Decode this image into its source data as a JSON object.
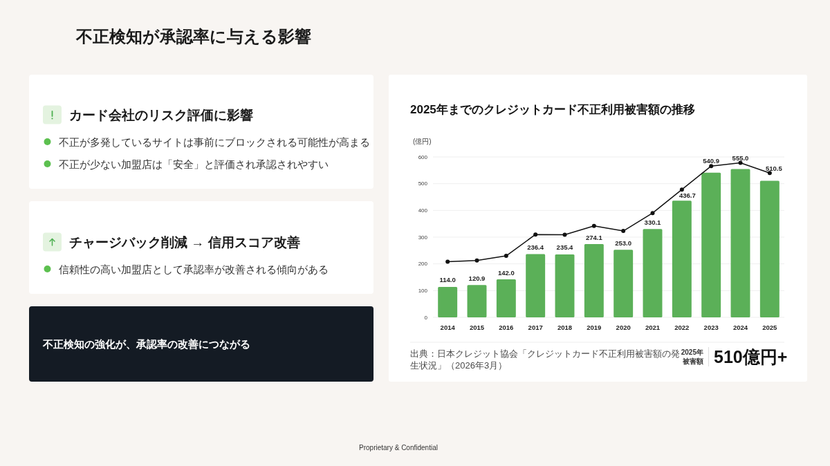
{
  "chart_data": [
    {
      "type": "other",
      "title": "不正検知が承認率に与える影響",
      "annotations": [
        "Proprietary & Confidential"
      ]
    },
    {
      "type": "other",
      "title": "カード会社のリスク評価に影響",
      "annotations": [
        "不正が多発しているサイトは事前にブロックされる可能性が高まる",
        "不正が少ない加盟店は「安全」と評価され承認されやすい"
      ]
    },
    {
      "type": "other",
      "title": "チャージバック削減 → 信用スコア改善",
      "annotations": [
        "信頼性の高い加盟店として承認率が改善される傾向がある"
      ]
    },
    {
      "type": "other",
      "title": "不正検知の強化が、承認率の改善につながる"
    },
    {
      "type": "bar",
      "title": "2025年までのクレジットカード不正利用被害額の推移",
      "ylabel": "(億円)",
      "categories": [
        "2014",
        "2015",
        "2016",
        "2017",
        "2018",
        "2019",
        "2020",
        "2021",
        "2022",
        "2023",
        "2024",
        "2025"
      ],
      "series": [
        {
          "color": "#5bb058",
          "values": [
            114.0,
            120.9,
            142.0,
            236.4,
            235.4,
            274.1,
            253.0,
            330.1,
            436.7,
            540.9,
            555.0,
            510.5
          ],
          "value_labels": [
            "114.0",
            "120.9",
            "142.0",
            "236.4",
            "235.4",
            "274.1",
            "253.0",
            "330.1",
            "436.7",
            "540.9",
            "555.0",
            "510.5"
          ]
        },
        {
          "type": "line",
          "color": "#111111",
          "marker": "circle",
          "values": [
            208,
            213,
            230,
            310,
            309,
            342,
            323,
            390,
            478,
            566,
            578,
            540
          ]
        }
      ],
      "ylim": [
        0,
        600
      ],
      "yticks": [
        0,
        100,
        200,
        300,
        400,
        500,
        600
      ],
      "grid": "y",
      "annotations": [
        "出典：日本クレジット協会「クレジットカード不正利用被害額の発生状況」（2026年3月）",
        "2025年",
        "被害額",
        "510億円+"
      ]
    }
  ]
}
